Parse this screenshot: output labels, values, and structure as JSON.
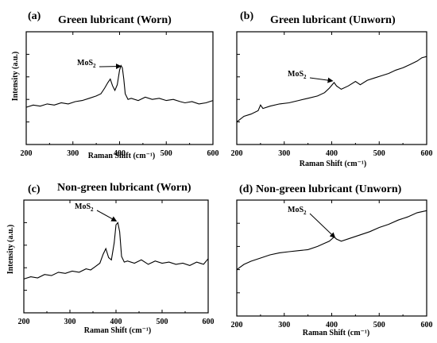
{
  "figure": {
    "panels": [
      {
        "letter": "(a)",
        "title": "Green lubricant (Worn)",
        "annotation": "MoS",
        "annotation_sub": "2"
      },
      {
        "letter": "(b)",
        "title": "Green lubricant (Unworn)",
        "annotation": "MoS",
        "annotation_sub": "2"
      },
      {
        "letter": "(c)",
        "title": "Non-green lubricant (Worn)",
        "annotation": "MoS",
        "annotation_sub": "2"
      },
      {
        "letter": "(d)",
        "title": "Non-green lubricant (Unworn)",
        "annotation": "MoS",
        "annotation_sub": "2"
      }
    ]
  },
  "chart_data": [
    {
      "type": "line",
      "title": "Green lubricant (Worn)",
      "xlabel": "Raman Shift (cm⁻¹)",
      "ylabel": "Intensity (a.u.)",
      "xlim": [
        200,
        600
      ],
      "x_ticks": [
        200,
        300,
        400,
        500,
        600
      ],
      "y_tick_count": 4,
      "grid": false,
      "annotation": {
        "text": "MoS2",
        "x": 405
      },
      "x": [
        200,
        215,
        230,
        245,
        260,
        275,
        290,
        305,
        320,
        335,
        350,
        360,
        368,
        375,
        380,
        385,
        390,
        395,
        400,
        403,
        406,
        409,
        412,
        418,
        425,
        440,
        455,
        470,
        485,
        500,
        515,
        530,
        540,
        555,
        570,
        585,
        600
      ],
      "y": [
        0.33,
        0.35,
        0.34,
        0.36,
        0.35,
        0.37,
        0.36,
        0.38,
        0.39,
        0.41,
        0.43,
        0.45,
        0.5,
        0.55,
        0.58,
        0.52,
        0.48,
        0.53,
        0.66,
        0.7,
        0.68,
        0.58,
        0.45,
        0.4,
        0.41,
        0.39,
        0.42,
        0.4,
        0.41,
        0.39,
        0.4,
        0.38,
        0.37,
        0.38,
        0.36,
        0.37,
        0.39
      ],
      "ylim": [
        0,
        1
      ]
    },
    {
      "type": "line",
      "title": "Green lubricant (Unworn)",
      "xlabel": "Raman Shift (cm⁻¹)",
      "ylabel": "",
      "xlim": [
        200,
        600
      ],
      "x_ticks": [
        200,
        300,
        400,
        500,
        600
      ],
      "y_tick_count": 4,
      "grid": false,
      "annotation": {
        "text": "MoS2",
        "x": 405
      },
      "x": [
        200,
        215,
        230,
        245,
        250,
        255,
        270,
        290,
        310,
        330,
        350,
        370,
        385,
        395,
        405,
        410,
        420,
        435,
        450,
        460,
        475,
        490,
        505,
        520,
        535,
        550,
        565,
        580,
        590,
        600
      ],
      "y": [
        0.2,
        0.25,
        0.27,
        0.3,
        0.35,
        0.32,
        0.34,
        0.36,
        0.37,
        0.39,
        0.41,
        0.43,
        0.46,
        0.5,
        0.55,
        0.52,
        0.49,
        0.52,
        0.56,
        0.53,
        0.57,
        0.59,
        0.61,
        0.63,
        0.66,
        0.68,
        0.71,
        0.74,
        0.77,
        0.78
      ],
      "ylim": [
        0,
        1
      ]
    },
    {
      "type": "line",
      "title": "Non-green lubricant (Worn)",
      "xlabel": "Raman Shift (cm⁻¹)",
      "ylabel": "Intensity (a.u.)",
      "xlim": [
        200,
        600
      ],
      "x_ticks": [
        200,
        300,
        400,
        500,
        600
      ],
      "y_tick_count": 4,
      "grid": false,
      "annotation": {
        "text": "MoS2",
        "x": 405
      },
      "x": [
        200,
        215,
        230,
        245,
        260,
        275,
        290,
        305,
        320,
        335,
        345,
        355,
        365,
        372,
        378,
        384,
        390,
        396,
        400,
        404,
        408,
        412,
        418,
        425,
        440,
        455,
        470,
        485,
        500,
        515,
        530,
        545,
        560,
        575,
        590,
        600
      ],
      "y": [
        0.3,
        0.32,
        0.31,
        0.34,
        0.33,
        0.36,
        0.35,
        0.37,
        0.36,
        0.39,
        0.38,
        0.41,
        0.44,
        0.52,
        0.57,
        0.49,
        0.47,
        0.62,
        0.78,
        0.8,
        0.72,
        0.5,
        0.45,
        0.46,
        0.44,
        0.47,
        0.43,
        0.46,
        0.44,
        0.45,
        0.43,
        0.44,
        0.42,
        0.45,
        0.43,
        0.48
      ],
      "ylim": [
        0,
        1
      ]
    },
    {
      "type": "line",
      "title": "Non-green lubricant (Unworn)",
      "xlabel": "Raman Shift (cm⁻¹)",
      "ylabel": "",
      "xlim": [
        200,
        600
      ],
      "x_ticks": [
        200,
        300,
        400,
        500,
        600
      ],
      "y_tick_count": 4,
      "grid": false,
      "annotation": {
        "text": "MoS2",
        "x": 410
      },
      "x": [
        200,
        215,
        230,
        250,
        270,
        290,
        310,
        330,
        350,
        370,
        385,
        395,
        405,
        410,
        420,
        440,
        460,
        480,
        500,
        520,
        540,
        560,
        580,
        600
      ],
      "y": [
        0.44,
        0.49,
        0.52,
        0.55,
        0.58,
        0.6,
        0.61,
        0.62,
        0.63,
        0.66,
        0.69,
        0.71,
        0.75,
        0.73,
        0.71,
        0.74,
        0.77,
        0.8,
        0.84,
        0.87,
        0.91,
        0.94,
        0.98,
        1.0
      ],
      "ylim": [
        0,
        1.1
      ]
    }
  ]
}
